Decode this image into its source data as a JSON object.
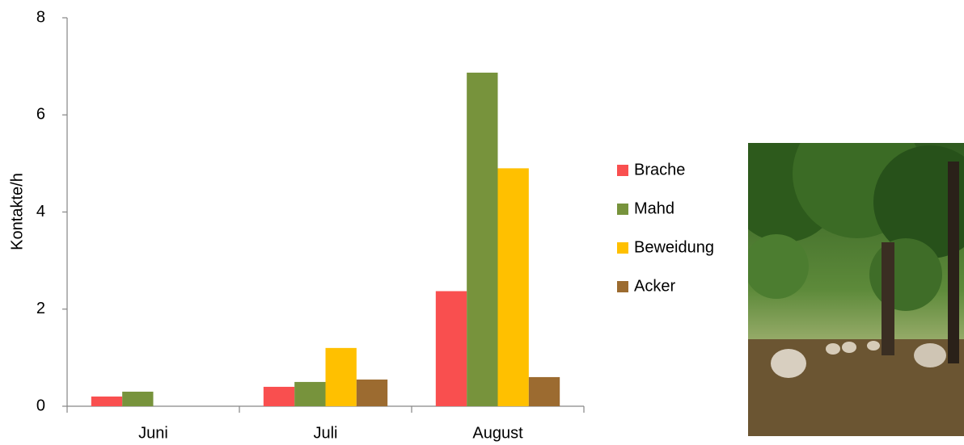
{
  "chart_data": {
    "type": "bar",
    "y_label": "Kontakte/h",
    "categories": [
      "Juni",
      "Juli",
      "August"
    ],
    "series": [
      {
        "name": "Brache",
        "color": "#f94f4f",
        "values": [
          0.2,
          0.4,
          2.37
        ]
      },
      {
        "name": "Mahd",
        "color": "#77933c",
        "values": [
          0.3,
          0.5,
          6.87
        ]
      },
      {
        "name": "Beweidung",
        "color": "#ffc000",
        "values": [
          0,
          1.2,
          4.9
        ]
      },
      {
        "name": "Acker",
        "color": "#9c6b30",
        "values": [
          0,
          0.55,
          0.6
        ]
      }
    ],
    "ylim": [
      0,
      8
    ],
    "yticks": [
      0,
      2,
      4,
      6,
      8
    ],
    "grid": false,
    "legend": "right"
  }
}
